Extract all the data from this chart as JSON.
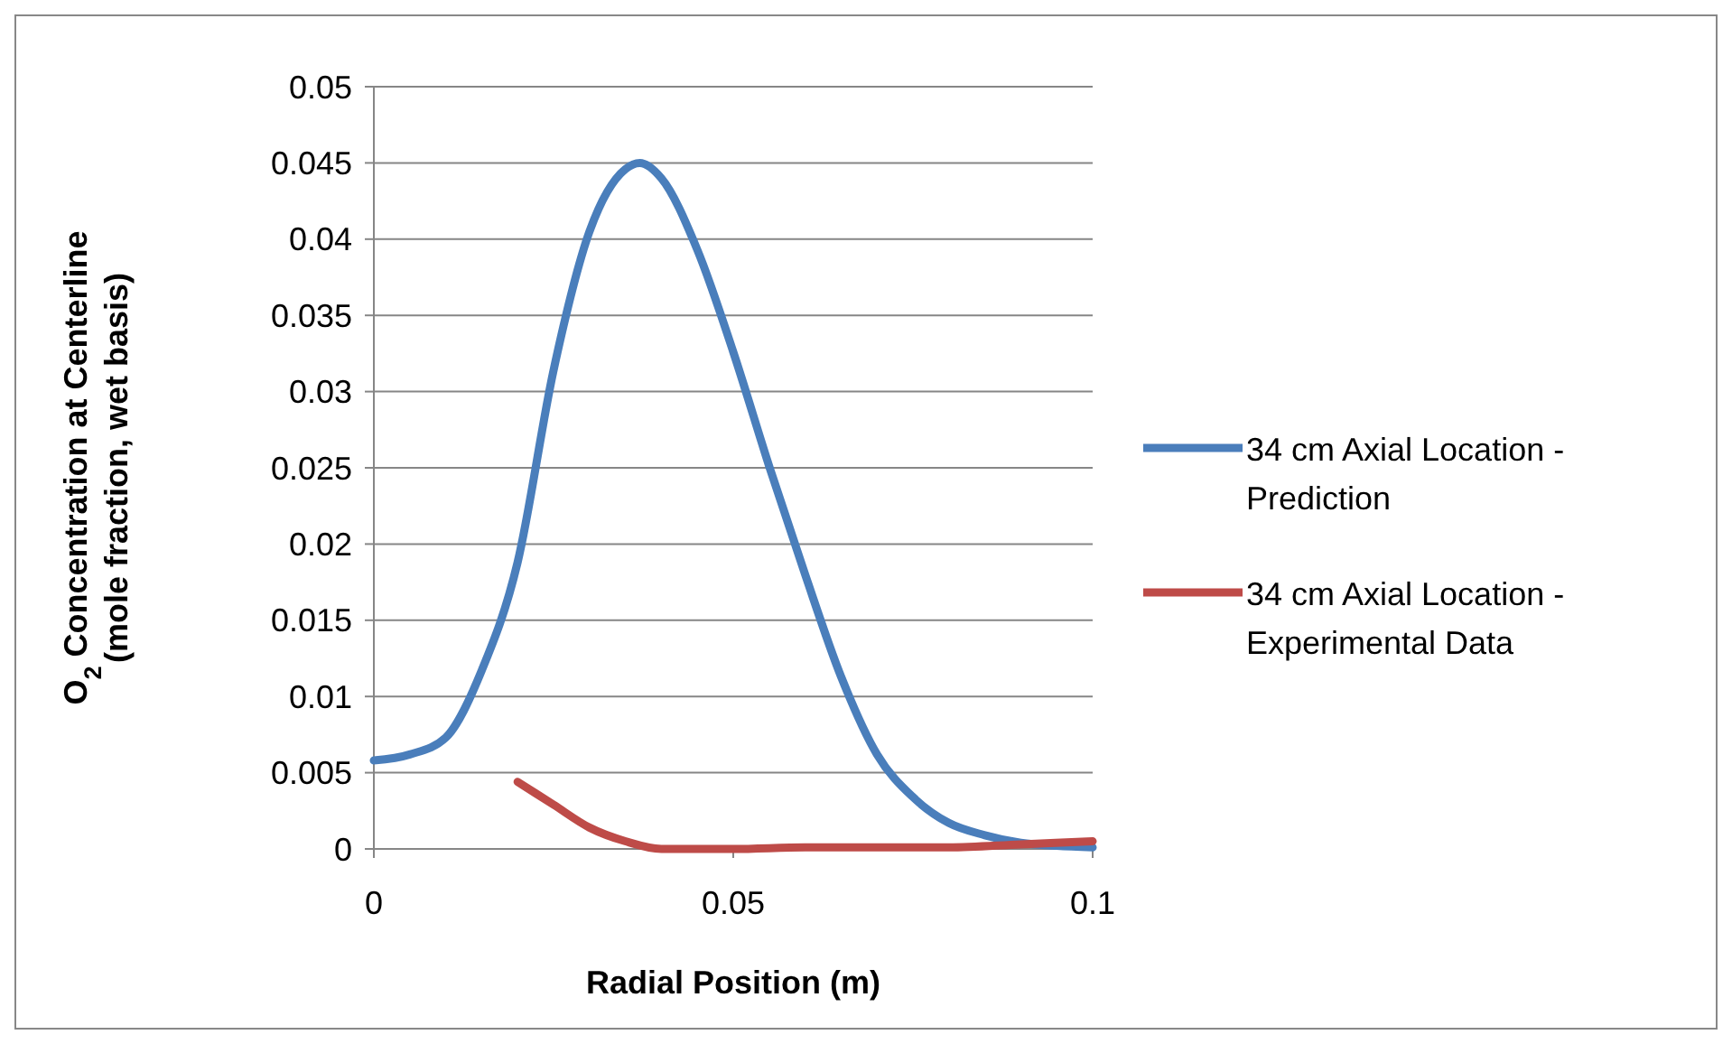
{
  "chart_data": {
    "type": "line",
    "xlabel": "Radial Position (m)",
    "ylabel": "O$_{2}$ Concentration at Centerline (mole fraction, wet basis)",
    "xlim": [
      0,
      0.1
    ],
    "xticks": [
      0,
      0.05,
      0.1
    ],
    "ylim": [
      0,
      0.05
    ],
    "yticks": [
      0,
      0.005,
      0.01,
      0.015,
      0.02,
      0.025,
      0.03,
      0.035,
      0.04,
      0.045,
      0.05
    ],
    "grid": "y",
    "legend": "right",
    "marker": "none",
    "series": [
      {
        "name": "34 cm Axial Location - Prediction",
        "color": "#4a7ebb",
        "x": [
          0,
          0.005,
          0.01,
          0.015,
          0.02,
          0.025,
          0.03,
          0.035,
          0.037,
          0.04,
          0.045,
          0.05,
          0.055,
          0.06,
          0.065,
          0.07,
          0.075,
          0.08,
          0.085,
          0.09,
          0.095,
          0.1
        ],
        "values": [
          0.0058,
          0.0062,
          0.0073,
          0.0117,
          0.0188,
          0.0314,
          0.0405,
          0.0446,
          0.045,
          0.044,
          0.0393,
          0.0326,
          0.0251,
          0.018,
          0.0113,
          0.0062,
          0.0034,
          0.0017,
          0.0009,
          0.0004,
          0.0002,
          0.0001
        ]
      },
      {
        "name": "34 cm Axial Location - Experimental Data",
        "color": "#be4b48",
        "x": [
          0.02,
          0.025,
          0.03,
          0.035,
          0.04,
          0.05,
          0.06,
          0.07,
          0.08,
          0.09,
          0.1
        ],
        "values": [
          0.0044,
          0.0029,
          0.0014,
          0.0005,
          0,
          0,
          0.0001,
          0.0001,
          0.0001,
          0.0003,
          0.0005
        ]
      }
    ]
  }
}
